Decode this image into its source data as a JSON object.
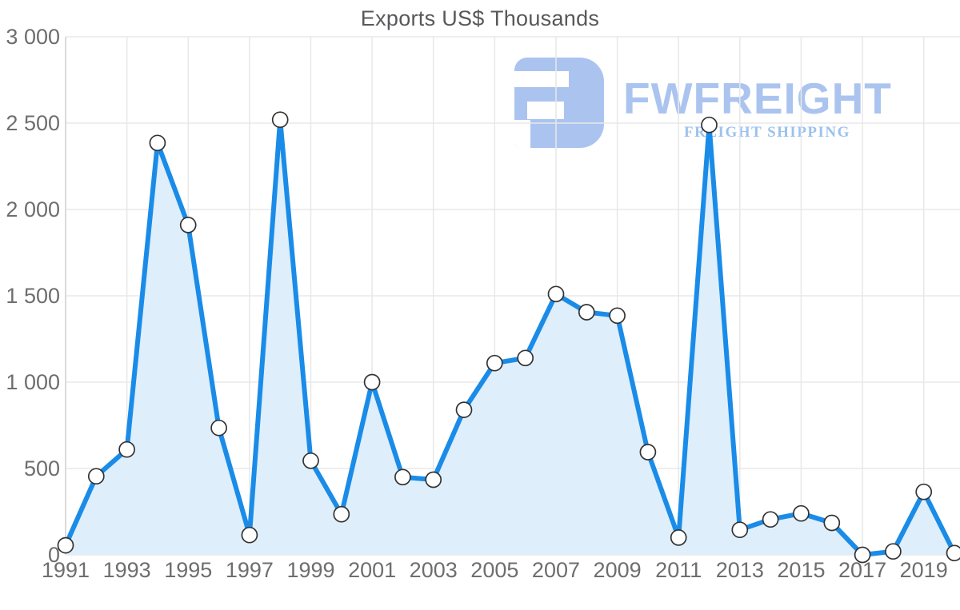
{
  "title": "Exports US$ Thousands",
  "watermark": {
    "brand": "FWFREIGHT",
    "tagline": "FREIGHT SHIPPING"
  },
  "colors": {
    "line": "#1a8ce8",
    "area": "#deeefb",
    "marker_fill": "#ffffff",
    "marker_stroke": "#333333",
    "grid": "#e8e8e8",
    "axis": "#d2d2d2",
    "tick_label": "#6e6e6e",
    "title": "#57585a",
    "logo": "#abc4ef",
    "logo_tagline": "#9cc2ec"
  },
  "chart_data": {
    "type": "area",
    "title": "Exports US$ Thousands",
    "x": [
      1991,
      1992,
      1993,
      1994,
      1995,
      1996,
      1997,
      1998,
      1999,
      2000,
      2001,
      2002,
      2003,
      2004,
      2005,
      2006,
      2007,
      2008,
      2009,
      2010,
      2011,
      2012,
      2013,
      2014,
      2015,
      2016,
      2017,
      2018,
      2019,
      2020
    ],
    "values": [
      55,
      455,
      610,
      2385,
      1910,
      735,
      115,
      2520,
      545,
      235,
      1000,
      450,
      435,
      840,
      1110,
      1140,
      1510,
      1405,
      1385,
      595,
      100,
      2490,
      145,
      205,
      240,
      185,
      0,
      20,
      365,
      10
    ],
    "xlabel": "",
    "ylabel": "",
    "ylim": [
      0,
      3000
    ],
    "ytick_step": 500,
    "ytick_labels": [
      "0",
      "500",
      "1 000",
      "1 500",
      "2 000",
      "2 500",
      "3 000"
    ],
    "xtick_labels": [
      "1991",
      "1993",
      "1995",
      "1997",
      "1999",
      "2001",
      "2003",
      "2005",
      "2007",
      "2009",
      "2011",
      "2013",
      "2015",
      "2017",
      "2019"
    ],
    "grid": true,
    "legend": false,
    "marker": "circle"
  }
}
